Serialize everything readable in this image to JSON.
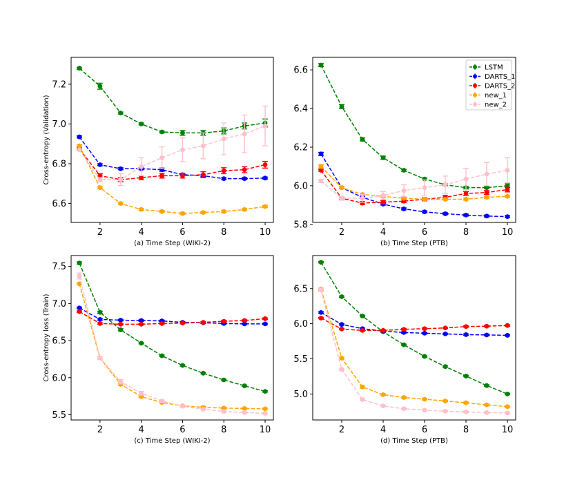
{
  "chart_data": [
    {
      "type": "line",
      "xlabel": "(a) Time Step (WIKI-2)",
      "ylabel": "Cross-entropy (Validation)",
      "xlim": [
        0.6,
        10.4
      ],
      "ylim": [
        6.505,
        7.335
      ],
      "xticks": [
        2,
        4,
        6,
        8,
        10
      ],
      "yticks": [
        6.6,
        6.8,
        7.0,
        7.2
      ],
      "ytick_labels": [
        "6.6",
        "6.8",
        "7.0",
        "7.2"
      ],
      "x": [
        1,
        2,
        3,
        4,
        5,
        6,
        7,
        8,
        9,
        10
      ],
      "series": [
        {
          "name": "LSTM",
          "color": "#008000",
          "values": [
            7.28,
            7.19,
            7.055,
            7.0,
            6.96,
            6.955,
            6.955,
            6.965,
            6.99,
            7.005
          ],
          "err": [
            0.005,
            0.015,
            0.005,
            0.005,
            0.005,
            0.012,
            0.012,
            0.015,
            0.015,
            0.02
          ]
        },
        {
          "name": "DARTS_1",
          "color": "#0000ff",
          "values": [
            6.935,
            6.795,
            6.775,
            6.775,
            6.77,
            6.745,
            6.74,
            6.725,
            6.725,
            6.728
          ],
          "err": [
            0.005,
            0.005,
            0.005,
            0.005,
            0.008,
            0.005,
            0.005,
            0.005,
            0.005,
            0.005
          ]
        },
        {
          "name": "DARTS_2",
          "color": "#ff0000",
          "values": [
            6.875,
            6.74,
            6.72,
            6.73,
            6.74,
            6.74,
            6.745,
            6.765,
            6.77,
            6.795
          ],
          "err": [
            0.005,
            0.01,
            0.01,
            0.01,
            0.012,
            0.012,
            0.015,
            0.015,
            0.015,
            0.017
          ]
        },
        {
          "name": "new_1",
          "color": "#ffa500",
          "values": [
            6.89,
            6.68,
            6.6,
            6.57,
            6.56,
            6.55,
            6.555,
            6.56,
            6.57,
            6.585
          ],
          "err": [
            0.005,
            0.005,
            0.005,
            0.005,
            0.005,
            0.005,
            0.005,
            0.005,
            0.005,
            0.005
          ]
        },
        {
          "name": "new_2",
          "color": "#ffc0cb",
          "values": [
            6.87,
            6.72,
            6.72,
            6.785,
            6.83,
            6.87,
            6.89,
            6.925,
            6.95,
            6.99
          ],
          "err": [
            0.005,
            0.01,
            0.03,
            0.045,
            0.055,
            0.06,
            0.065,
            0.08,
            0.095,
            0.1
          ]
        }
      ]
    },
    {
      "type": "line",
      "xlabel": "(b) Time Step (PTB)",
      "ylabel": "",
      "xlim": [
        0.6,
        10.4
      ],
      "ylim": [
        5.81,
        6.665
      ],
      "xticks": [
        2,
        4,
        6,
        8,
        10
      ],
      "yticks": [
        5.8,
        6.0,
        6.2,
        6.4,
        6.6
      ],
      "ytick_labels": [
        "5.8",
        "6.0",
        "6.2",
        "6.4",
        "6.6"
      ],
      "x": [
        1,
        2,
        3,
        4,
        5,
        6,
        7,
        8,
        9,
        10
      ],
      "legend": "top-right",
      "series": [
        {
          "name": "LSTM",
          "color": "#008000",
          "values": [
            6.625,
            6.41,
            6.24,
            6.145,
            6.08,
            6.035,
            6.005,
            5.99,
            5.99,
            6.0
          ],
          "err": [
            0.008,
            0.01,
            0.008,
            0.008,
            0.005,
            0.005,
            0.005,
            0.005,
            0.005,
            0.01
          ]
        },
        {
          "name": "DARTS_1",
          "color": "#0000ff",
          "values": [
            6.165,
            5.99,
            5.94,
            5.905,
            5.88,
            5.865,
            5.855,
            5.848,
            5.843,
            5.84
          ],
          "err": [
            0.008,
            0.005,
            0.005,
            0.005,
            0.005,
            0.005,
            0.005,
            0.005,
            0.005,
            0.005
          ]
        },
        {
          "name": "DARTS_2",
          "color": "#ff0000",
          "values": [
            6.08,
            5.935,
            5.91,
            5.915,
            5.92,
            5.93,
            5.94,
            5.96,
            5.965,
            5.98
          ],
          "err": [
            0.005,
            0.008,
            0.008,
            0.008,
            0.008,
            0.008,
            0.01,
            0.01,
            0.01,
            0.012
          ]
        },
        {
          "name": "new_1",
          "color": "#ffa500",
          "values": [
            6.1,
            5.99,
            5.955,
            5.945,
            5.935,
            5.93,
            5.93,
            5.93,
            5.94,
            5.945
          ],
          "err": [
            0.008,
            0.005,
            0.005,
            0.005,
            0.005,
            0.005,
            0.005,
            0.005,
            0.005,
            0.005
          ]
        },
        {
          "name": "new_2",
          "color": "#ffc0cb",
          "values": [
            6.025,
            5.935,
            5.935,
            5.95,
            5.975,
            5.99,
            6.005,
            6.035,
            6.06,
            6.08
          ],
          "err": [
            0.008,
            0.01,
            0.02,
            0.02,
            0.03,
            0.04,
            0.045,
            0.055,
            0.06,
            0.065
          ]
        }
      ]
    },
    {
      "type": "line",
      "xlabel": "(c) Time Step (WIKI-2)",
      "ylabel": "Cross-entropy loss (Train)",
      "xlim": [
        0.6,
        10.4
      ],
      "ylim": [
        5.43,
        7.645
      ],
      "xticks": [
        2,
        4,
        6,
        8,
        10
      ],
      "yticks": [
        5.5,
        6.0,
        6.5,
        7.0,
        7.5
      ],
      "ytick_labels": [
        "5.5",
        "6.0",
        "6.5",
        "7.0",
        "7.5"
      ],
      "x": [
        1,
        2,
        3,
        4,
        5,
        6,
        7,
        8,
        9,
        10
      ],
      "series": [
        {
          "name": "LSTM",
          "color": "#008000",
          "values": [
            7.545,
            6.88,
            6.645,
            6.465,
            6.295,
            6.165,
            6.06,
            5.97,
            5.89,
            5.815
          ],
          "err": [
            0.015,
            0.015,
            0.015,
            0.01,
            0.01,
            0.01,
            0.01,
            0.01,
            0.01,
            0.01
          ]
        },
        {
          "name": "DARTS_1",
          "color": "#0000ff",
          "values": [
            6.94,
            6.785,
            6.775,
            6.77,
            6.765,
            6.745,
            6.74,
            6.73,
            6.725,
            6.725
          ],
          "err": [
            0.01,
            0.01,
            0.01,
            0.01,
            0.01,
            0.01,
            0.01,
            0.01,
            0.01,
            0.01
          ]
        },
        {
          "name": "DARTS_2",
          "color": "#ff0000",
          "values": [
            6.89,
            6.73,
            6.72,
            6.72,
            6.73,
            6.735,
            6.745,
            6.76,
            6.77,
            6.795
          ],
          "err": [
            0.01,
            0.01,
            0.01,
            0.01,
            0.01,
            0.01,
            0.01,
            0.01,
            0.01,
            0.01
          ]
        },
        {
          "name": "new_1",
          "color": "#ffa500",
          "values": [
            7.265,
            6.265,
            5.91,
            5.745,
            5.665,
            5.62,
            5.6,
            5.59,
            5.585,
            5.58
          ],
          "err": [
            0.015,
            0.02,
            0.015,
            0.015,
            0.01,
            0.01,
            0.01,
            0.01,
            0.01,
            0.01
          ]
        },
        {
          "name": "new_2",
          "color": "#ffc0cb",
          "values": [
            7.37,
            6.265,
            5.945,
            5.79,
            5.685,
            5.615,
            5.575,
            5.545,
            5.53,
            5.52
          ],
          "err": [
            0.04,
            0.02,
            0.03,
            0.025,
            0.015,
            0.015,
            0.01,
            0.01,
            0.01,
            0.01
          ]
        }
      ]
    },
    {
      "type": "line",
      "xlabel": "(d) Time Step (PTB)",
      "ylabel": "",
      "xlim": [
        0.6,
        10.4
      ],
      "ylim": [
        4.63,
        6.97
      ],
      "xticks": [
        2,
        4,
        6,
        8,
        10
      ],
      "yticks": [
        5.0,
        5.5,
        6.0,
        6.5
      ],
      "ytick_labels": [
        "5.0",
        "5.5",
        "6.0",
        "6.5"
      ],
      "x": [
        1,
        2,
        3,
        4,
        5,
        6,
        7,
        8,
        9,
        10
      ],
      "series": [
        {
          "name": "LSTM",
          "color": "#008000",
          "values": [
            6.875,
            6.385,
            6.11,
            5.885,
            5.7,
            5.535,
            5.39,
            5.255,
            5.12,
            5.0
          ],
          "err": [
            0.01,
            0.01,
            0.01,
            0.01,
            0.01,
            0.01,
            0.01,
            0.01,
            0.01,
            0.01
          ]
        },
        {
          "name": "DARTS_1",
          "color": "#0000ff",
          "values": [
            6.16,
            5.99,
            5.93,
            5.895,
            5.875,
            5.865,
            5.855,
            5.845,
            5.84,
            5.835
          ],
          "err": [
            0.01,
            0.01,
            0.01,
            0.01,
            0.01,
            0.01,
            0.01,
            0.01,
            0.01,
            0.01
          ]
        },
        {
          "name": "DARTS_2",
          "color": "#ff0000",
          "values": [
            6.08,
            5.925,
            5.905,
            5.905,
            5.92,
            5.93,
            5.94,
            5.96,
            5.965,
            5.975
          ],
          "err": [
            0.01,
            0.01,
            0.01,
            0.01,
            0.01,
            0.01,
            0.01,
            0.01,
            0.01,
            0.01
          ]
        },
        {
          "name": "new_1",
          "color": "#ffa500",
          "values": [
            6.49,
            5.51,
            5.1,
            4.99,
            4.95,
            4.925,
            4.9,
            4.875,
            4.845,
            4.82
          ],
          "err": [
            0.015,
            0.015,
            0.015,
            0.01,
            0.01,
            0.01,
            0.01,
            0.01,
            0.01,
            0.01
          ]
        },
        {
          "name": "new_2",
          "color": "#ffc0cb",
          "values": [
            6.48,
            5.35,
            4.92,
            4.83,
            4.79,
            4.77,
            4.755,
            4.745,
            4.735,
            4.73
          ],
          "err": [
            0.02,
            0.015,
            0.015,
            0.01,
            0.01,
            0.01,
            0.01,
            0.01,
            0.01,
            0.01
          ]
        }
      ]
    }
  ]
}
